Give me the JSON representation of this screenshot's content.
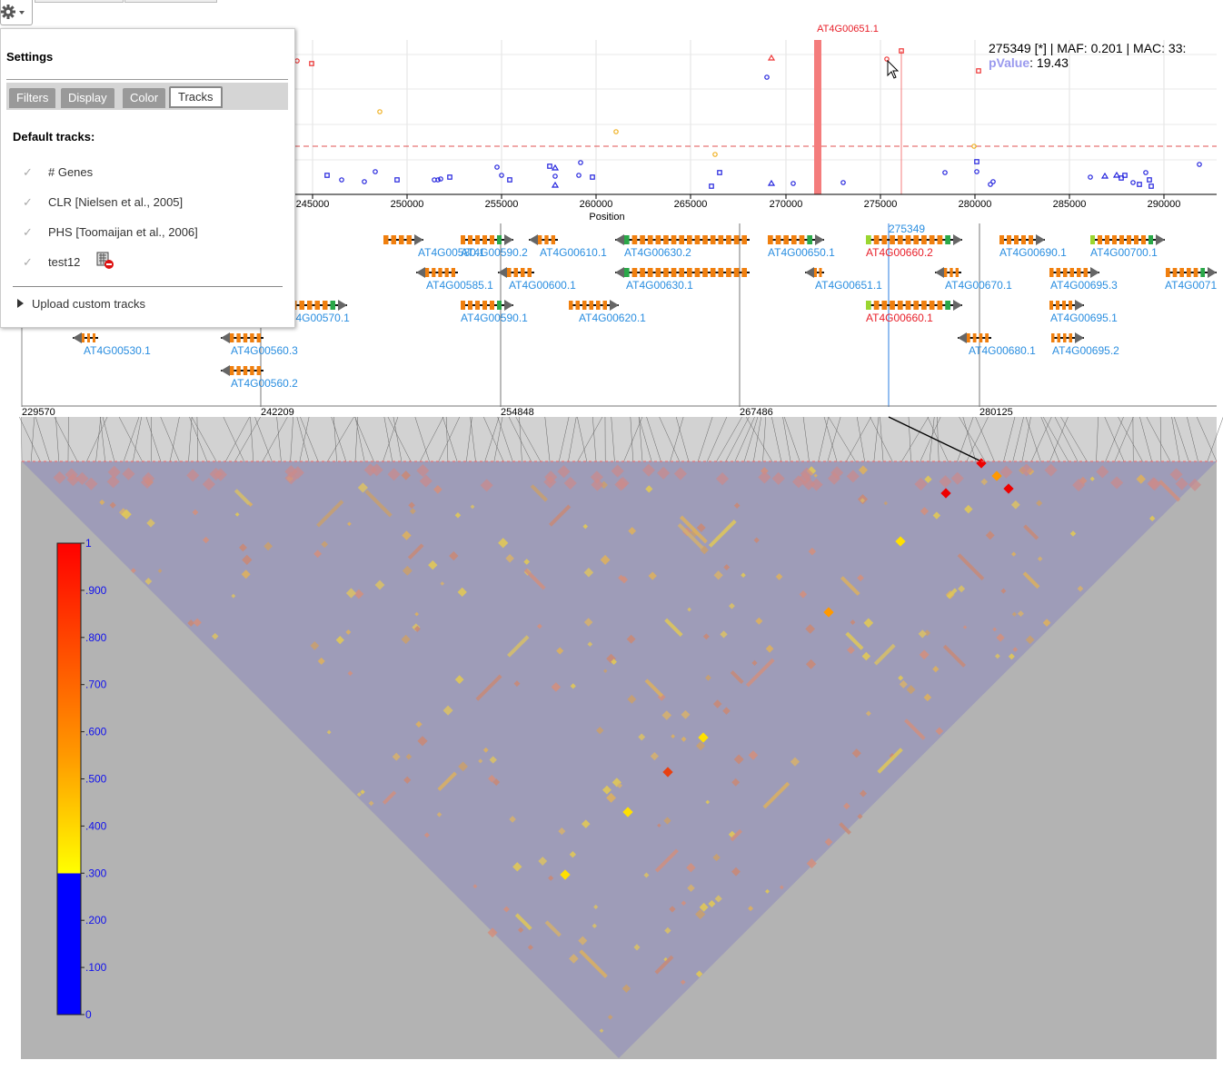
{
  "toolbar": {
    "settings_button": "settings"
  },
  "settings": {
    "title": "Settings",
    "tabs": [
      {
        "label": "Filters",
        "active": false
      },
      {
        "label": "Display",
        "active": false
      },
      {
        "label": "Color",
        "active": false
      },
      {
        "label": "Tracks",
        "active": true
      }
    ],
    "default_tracks_label": "Default tracks:",
    "tracks": [
      {
        "label": "# Genes"
      },
      {
        "label": "CLR [Nielsen et al., 2005]"
      },
      {
        "label": "PHS [Toomaijan et al., 2006]"
      },
      {
        "label": "test12",
        "removable": true
      }
    ],
    "upload_label": "Upload custom tracks"
  },
  "tooltip": {
    "line1": "275349 [*] | MAF: 0.201 | MAC: 33:",
    "pvalue_label": "pValue",
    "pvalue_value": ": 19.43"
  },
  "gwas_plot": {
    "xlabel": "Position",
    "highlighted_gene": "AT4G00651.1",
    "x_ticks": [
      "245000",
      "250000",
      "255000",
      "260000",
      "265000",
      "270000",
      "275000",
      "280000",
      "285000",
      "290000"
    ]
  },
  "gene_track": {
    "selected_position": "275349",
    "genes": [
      {
        "name": "AT4G00580.1",
        "highlight": false
      },
      {
        "name": "AT4G00590.2",
        "highlight": false
      },
      {
        "name": "AT4G00610.1",
        "highlight": false
      },
      {
        "name": "AT4G00630.2",
        "highlight": false
      },
      {
        "name": "AT4G00650.1",
        "highlight": false
      },
      {
        "name": "AT4G00660.2",
        "highlight": true
      },
      {
        "name": "AT4G00690.1",
        "highlight": false
      },
      {
        "name": "AT4G00700.1",
        "highlight": false
      },
      {
        "name": "AT4G00585.1",
        "highlight": false
      },
      {
        "name": "AT4G00600.1",
        "highlight": false
      },
      {
        "name": "AT4G00630.1",
        "highlight": false
      },
      {
        "name": "AT4G00651.1",
        "highlight": false
      },
      {
        "name": "AT4G00670.1",
        "highlight": false
      },
      {
        "name": "AT4G00695.3",
        "highlight": false
      },
      {
        "name": "AT4G0071",
        "highlight": false
      },
      {
        "name": "AT4G00570.1",
        "highlight": false
      },
      {
        "name": "AT4G00590.1",
        "highlight": false
      },
      {
        "name": "AT4G00620.1",
        "highlight": false
      },
      {
        "name": "AT4G00660.1",
        "highlight": true
      },
      {
        "name": "AT4G00695.1",
        "highlight": false
      },
      {
        "name": "AT4G00530.1",
        "highlight": false
      },
      {
        "name": "AT4G00560.3",
        "highlight": false
      },
      {
        "name": "AT4G00680.1",
        "highlight": false
      },
      {
        "name": "AT4G00695.2",
        "highlight": false
      },
      {
        "name": "AT4G00560.2",
        "highlight": false
      }
    ]
  },
  "ld_plot": {
    "position_labels": [
      "229570",
      "242209",
      "254848",
      "267486",
      "280125"
    ],
    "legend_ticks": [
      "1",
      ".900",
      ".800",
      ".700",
      ".600",
      ".500",
      ".400",
      ".300",
      ".200",
      ".100",
      "0"
    ]
  },
  "colors": {
    "gene_orange": "#f07f0e",
    "gene_green": "#2aa848",
    "gene_lime": "#9ad630",
    "label_blue": "#2a8ee0",
    "highlight_red": "#e8202a",
    "ld_background": "#9e9cb8",
    "grey": "#b3b3b3",
    "legend_blue": "#1010ee"
  }
}
